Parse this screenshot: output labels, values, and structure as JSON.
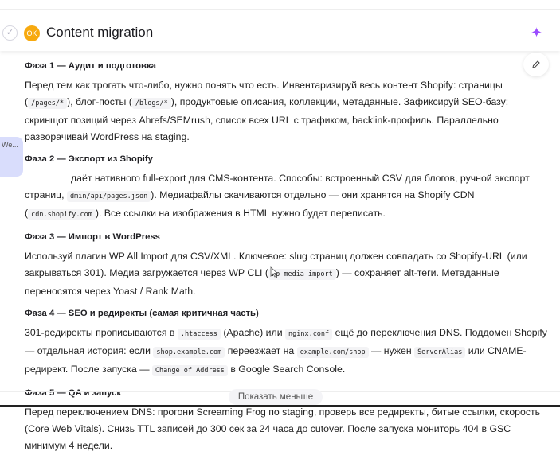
{
  "header": {
    "status_badge": "OK",
    "title": "Content migration",
    "sparkle_icon": "sparkle-icon"
  },
  "overlay_text": "We...",
  "phases": [
    {
      "heading": "Фаза 1 — Аудит и подготовка",
      "segments": [
        "Перед тем как трогать что-либо, нужно понять что есть. Инвентаризируй весь контент Shopify: страницы (",
        {
          "code": "/pages/*"
        },
        "), блог-посты (",
        {
          "code": "/blogs/*"
        },
        "), продуктовые описания, коллекции, метаданные. Зафиксируй SEO-базу: скринщот позиций через Ahrefs/SEMrush, список всех URL с трафиком, backlink-профиль. Параллельно разворачивай WordPress на staging."
      ]
    },
    {
      "heading": "Фаза 2 — Экспорт из Shopify",
      "segments": [
        "даёт нативного full-export для CMS-контента. Способы: встроенный CSV для блогов, ручной экспорт страниц, ",
        {
          "code": "dmin/api/pages.json"
        },
        "). Медиафайлы скачиваются отдельно — они хранятся на Shopify CDN (",
        {
          "code": "cdn.shopify.com"
        },
        "). Все ссылки на изображения в HTML нужно будет переписать."
      ]
    },
    {
      "heading": "Фаза 3 — Импорт в WordPress",
      "segments": [
        "Используй плагин WP All Import для CSV/XML. Ключевое: slug страниц должен совпадать со Shopify-URL (или закрываться 301). Медиа загружается через WP CLI (",
        {
          "code": "wp media import"
        },
        ") — сохраняет alt-теги. Метаданные переносятся через Yoast / Rank Math."
      ]
    },
    {
      "heading": "Фаза 4 — SEO и редиректы (самая критичная часть)",
      "segments": [
        "301-редиректы прописываются в ",
        {
          "code": ".htaccess"
        },
        " (Apache) или ",
        {
          "code": "nginx.conf"
        },
        " ещё до переключения DNS. Поддомен Shopify — отдельная история: если ",
        {
          "code": "shop.example.com"
        },
        " переезжает на ",
        {
          "code": "example.com/shop"
        },
        " — нужен ",
        {
          "code": "ServerAlias"
        },
        " или CNAME-редирект. После запуска — ",
        {
          "code": "Change of Address"
        },
        " в Google Search Console."
      ]
    },
    {
      "heading": "Фаза 5 — QA и запуск",
      "segments": [
        "Перед переключением DNS: прогони Screaming Frog по staging, проверь все редиректы, битые ссылки, скорость (Core Web Vitals). Снизь TTL записей до 300 сек за 24 часа до cutover. После запуска мониторь 404 в GSC минимум 4 недели."
      ]
    }
  ],
  "footer": {
    "show_less_label": "Показать меньше"
  }
}
